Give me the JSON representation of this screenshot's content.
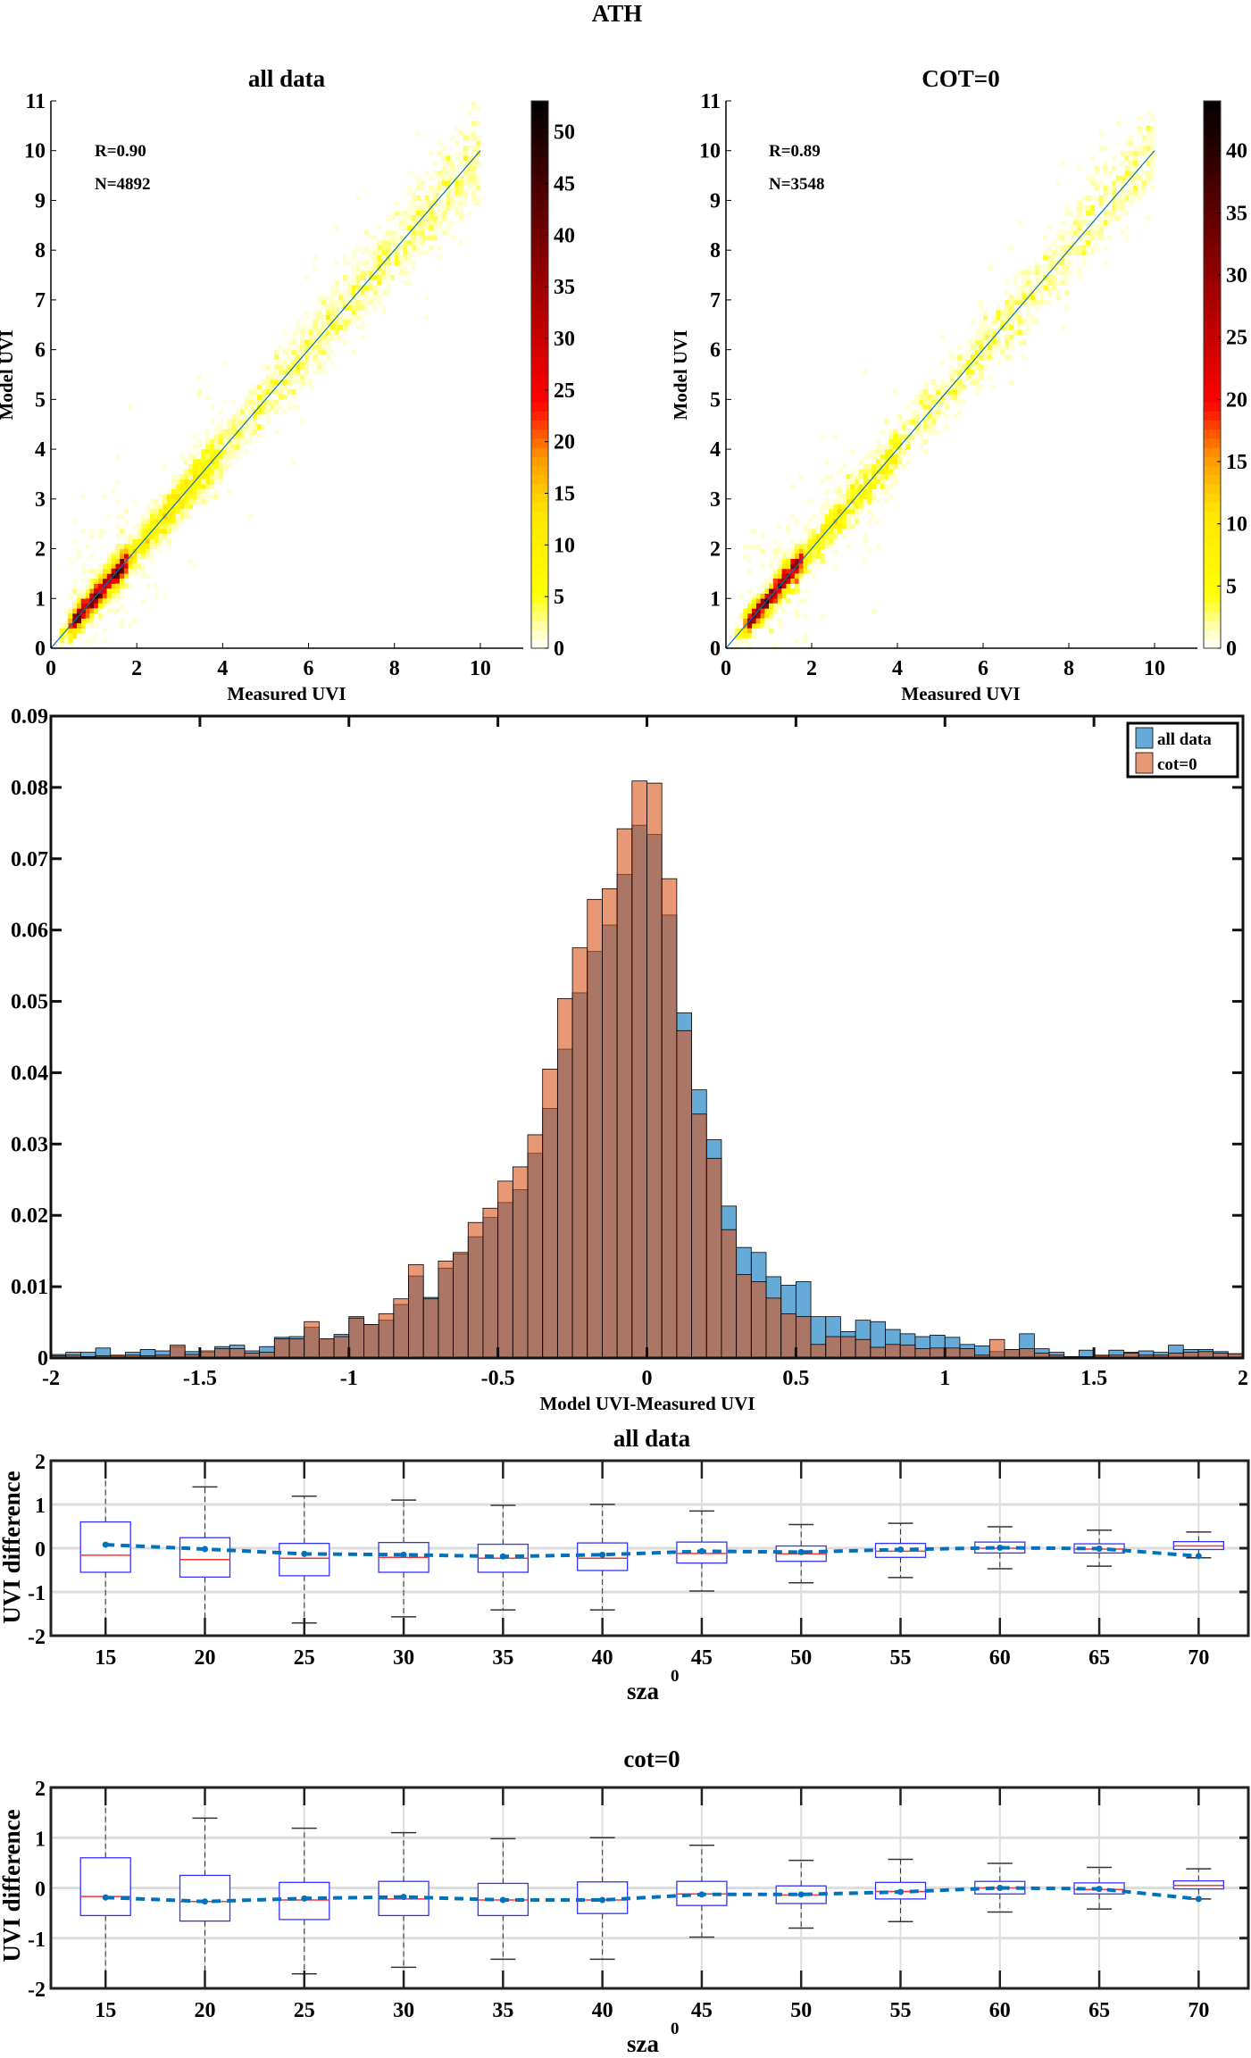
{
  "figure_title": "ATH",
  "chart_data": [
    {
      "type": "heatmap",
      "panel": "scatter-all",
      "title": "all data",
      "xlabel": "Measured UVI",
      "ylabel": "Model UVI",
      "xlim": [
        0,
        11
      ],
      "ylim": [
        0,
        11
      ],
      "xticks": [
        0,
        2,
        4,
        6,
        8,
        10
      ],
      "yticks": [
        0,
        1,
        2,
        3,
        4,
        5,
        6,
        7,
        8,
        9,
        10,
        11
      ],
      "annotation_r": "R=0.90",
      "annotation_n": "N=4892",
      "n_points": 4892,
      "reference_line": [
        [
          0,
          0
        ],
        [
          10,
          10
        ]
      ],
      "colorbar": {
        "min": 0,
        "max": 53,
        "ticks": [
          0,
          5,
          10,
          15,
          20,
          25,
          30,
          35,
          40,
          45,
          50
        ]
      },
      "seed": 11
    },
    {
      "type": "heatmap",
      "panel": "scatter-cot0",
      "title": "COT=0",
      "xlabel": "Measured UVI",
      "ylabel": "Model UVI",
      "xlim": [
        0,
        11
      ],
      "ylim": [
        0,
        11
      ],
      "xticks": [
        0,
        2,
        4,
        6,
        8,
        10
      ],
      "yticks": [
        0,
        1,
        2,
        3,
        4,
        5,
        6,
        7,
        8,
        9,
        10,
        11
      ],
      "annotation_r": "R=0.89",
      "annotation_n": "N=3548",
      "n_points": 3548,
      "reference_line": [
        [
          0,
          0
        ],
        [
          10,
          10
        ]
      ],
      "colorbar": {
        "min": 0,
        "max": 44,
        "ticks": [
          0,
          5,
          10,
          15,
          20,
          25,
          30,
          35,
          40
        ]
      },
      "seed": 29
    },
    {
      "type": "bar",
      "panel": "histogram",
      "title": "",
      "xlabel": "Model UVI-Measured UVI",
      "ylabel": "",
      "xlim": [
        -2,
        2
      ],
      "ylim": [
        0,
        0.09
      ],
      "bin_width": 0.05,
      "xticks": [
        -2,
        -1.5,
        -1,
        -0.5,
        0,
        0.5,
        1,
        1.5,
        2
      ],
      "yticks": [
        0,
        0.01,
        0.02,
        0.03,
        0.04,
        0.05,
        0.06,
        0.07,
        0.08,
        0.09
      ],
      "legend_position": "top-right",
      "series": [
        {
          "name": "all data",
          "color": "#0072bd",
          "values": [
            0.0005,
            0.0008,
            0.0008,
            0.0014,
            0.0003,
            0.0008,
            0.0012,
            0.001,
            0.0016,
            0.0009,
            0.0008,
            0.0016,
            0.0018,
            0.001,
            0.0016,
            0.0029,
            0.003,
            0.0043,
            0.0027,
            0.0033,
            0.0058,
            0.0047,
            0.0053,
            0.0075,
            0.0115,
            0.0085,
            0.0126,
            0.0146,
            0.017,
            0.0197,
            0.0218,
            0.0236,
            0.0287,
            0.035,
            0.0433,
            0.0512,
            0.057,
            0.0607,
            0.0678,
            0.0747,
            0.0734,
            0.0621,
            0.0484,
            0.0376,
            0.0306,
            0.0213,
            0.0155,
            0.0148,
            0.0114,
            0.0102,
            0.0107,
            0.0058,
            0.0058,
            0.0037,
            0.0053,
            0.0051,
            0.004,
            0.0034,
            0.003,
            0.0032,
            0.0029,
            0.0019,
            0.0017,
            0.0009,
            0.0012,
            0.0034,
            0.0013,
            0.0008,
            0.0002,
            0.0011,
            0.0003,
            0.0011,
            0.0008,
            0.001,
            0.0008,
            0.0018,
            0.0012,
            0.0012,
            0.0009,
            0.0006
          ]
        },
        {
          "name": "cot=0",
          "color": "#d95319",
          "values": [
            0.0003,
            0.0004,
            0.0002,
            0.0003,
            0.0004,
            0.0004,
            0.0003,
            0.0004,
            0.0018,
            0.0005,
            0.001,
            0.0013,
            0.0013,
            0.0007,
            0.0008,
            0.0027,
            0.0027,
            0.0051,
            0.0027,
            0.003,
            0.0056,
            0.0047,
            0.0062,
            0.0083,
            0.0131,
            0.0083,
            0.0136,
            0.0148,
            0.019,
            0.021,
            0.0248,
            0.0268,
            0.0313,
            0.0405,
            0.0504,
            0.0575,
            0.0643,
            0.0658,
            0.0742,
            0.0809,
            0.0806,
            0.0672,
            0.0459,
            0.0342,
            0.028,
            0.018,
            0.0117,
            0.0107,
            0.0084,
            0.0062,
            0.0058,
            0.0019,
            0.003,
            0.003,
            0.0026,
            0.0015,
            0.0019,
            0.0018,
            0.0013,
            0.0014,
            0.0014,
            0.0013,
            0.0004,
            0.0026,
            0.0012,
            0.0013,
            0.0007,
            0.0004,
            0.0002,
            0.0002,
            0.0004,
            0.0004,
            0.0007,
            0.0004,
            0.0004,
            0.0007,
            0.0008,
            0.0009,
            0.0007,
            0.0006
          ]
        }
      ]
    },
    {
      "type": "box",
      "panel": "box-all",
      "title": "all data",
      "xlabel": "sza",
      "xlabel_superscript": "0",
      "ylabel": "UVI difference",
      "ylim": [
        -2,
        2
      ],
      "yticks": [
        -2,
        -1,
        0,
        1,
        2
      ],
      "categories": [
        "15",
        "20",
        "25",
        "30",
        "35",
        "40",
        "45",
        "50",
        "55",
        "60",
        "65",
        "70"
      ],
      "q3": [
        0.6,
        0.24,
        0.11,
        0.13,
        0.09,
        0.12,
        0.14,
        0.05,
        0.11,
        0.14,
        0.1,
        0.15
      ],
      "median": [
        -0.16,
        -0.26,
        -0.23,
        -0.21,
        -0.23,
        -0.23,
        -0.12,
        -0.13,
        -0.07,
        0.0,
        -0.02,
        0.05
      ],
      "q1": [
        -0.55,
        -0.66,
        -0.63,
        -0.55,
        -0.55,
        -0.51,
        -0.34,
        -0.3,
        -0.21,
        -0.11,
        -0.11,
        -0.03
      ],
      "whisker_high": [
        2.5,
        1.4,
        1.19,
        1.1,
        0.98,
        1.0,
        0.85,
        0.54,
        0.57,
        0.49,
        0.41,
        0.37
      ],
      "whisker_low": [
        -2.5,
        -2.0,
        -1.71,
        -1.57,
        -1.41,
        -1.41,
        -0.98,
        -0.79,
        -0.67,
        -0.47,
        -0.41,
        -0.22
      ],
      "mean": [
        0.08,
        -0.02,
        -0.13,
        -0.15,
        -0.19,
        -0.15,
        -0.07,
        -0.09,
        -0.03,
        0.01,
        -0.01,
        -0.18
      ]
    },
    {
      "type": "box",
      "panel": "box-cot0",
      "title": "cot=0",
      "xlabel": "sza",
      "xlabel_superscript": "0",
      "ylabel": "UVI difference",
      "ylim": [
        -2,
        2
      ],
      "yticks": [
        -2,
        -1,
        0,
        1,
        2
      ],
      "categories": [
        "15",
        "20",
        "25",
        "30",
        "35",
        "40",
        "45",
        "50",
        "55",
        "60",
        "65",
        "70"
      ],
      "q3": [
        0.6,
        0.25,
        0.11,
        0.13,
        0.09,
        0.12,
        0.13,
        0.04,
        0.11,
        0.13,
        0.1,
        0.14
      ],
      "median": [
        -0.17,
        -0.27,
        -0.24,
        -0.22,
        -0.24,
        -0.24,
        -0.12,
        -0.14,
        -0.07,
        0.0,
        -0.03,
        0.05
      ],
      "q1": [
        -0.55,
        -0.66,
        -0.63,
        -0.55,
        -0.55,
        -0.51,
        -0.35,
        -0.31,
        -0.22,
        -0.12,
        -0.12,
        -0.02
      ],
      "whisker_high": [
        2.5,
        1.39,
        1.19,
        1.1,
        0.98,
        1.0,
        0.85,
        0.55,
        0.57,
        0.49,
        0.41,
        0.38
      ],
      "whisker_low": [
        -2.5,
        -2.0,
        -1.71,
        -1.58,
        -1.42,
        -1.42,
        -0.98,
        -0.8,
        -0.67,
        -0.48,
        -0.42,
        -0.22
      ],
      "mean": [
        -0.19,
        -0.27,
        -0.21,
        -0.18,
        -0.24,
        -0.24,
        -0.13,
        -0.13,
        -0.08,
        0.0,
        -0.02,
        -0.22
      ]
    }
  ]
}
